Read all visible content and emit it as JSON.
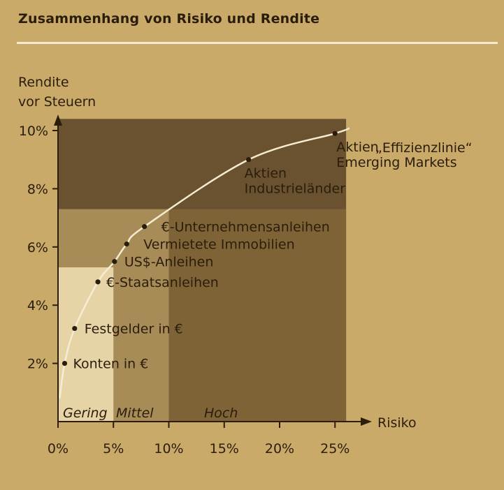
{
  "title": "Zusammenhang von Risiko und Rendite",
  "colors": {
    "background": "#c9aa68",
    "zone_gering": "#e6d4a6",
    "zone_mittel": "#a88c58",
    "zone_hoch": "#7d6335",
    "zone_top": "#6a5230",
    "curve": "#f5ecd2",
    "text": "#2a1d0c"
  },
  "chart_data": {
    "type": "scatter",
    "title": "Zusammenhang von Risiko und Rendite",
    "ylabel_line1": "Rendite",
    "ylabel_line2": "vor Steuern",
    "xlabel": "Risiko",
    "xlim": [
      0,
      27
    ],
    "ylim": [
      0,
      10.5
    ],
    "x_ticks": [
      {
        "value": 0,
        "label": "0%"
      },
      {
        "value": 5,
        "label": "5%"
      },
      {
        "value": 10,
        "label": "10%"
      },
      {
        "value": 15,
        "label": "15%"
      },
      {
        "value": 20,
        "label": "20%"
      },
      {
        "value": 25,
        "label": "25%"
      }
    ],
    "y_ticks": [
      {
        "value": 2,
        "label": "2%"
      },
      {
        "value": 4,
        "label": "4%"
      },
      {
        "value": 6,
        "label": "6%"
      },
      {
        "value": 8,
        "label": "8%"
      },
      {
        "value": 10,
        "label": "10%"
      }
    ],
    "zones": [
      {
        "name": "Gering",
        "x_from": 0,
        "x_to": 5,
        "y_top": 5.3
      },
      {
        "name": "Mittel",
        "x_from": 5,
        "x_to": 10,
        "y_top": 7.3
      },
      {
        "name": "Hoch",
        "x_from": 10,
        "x_to": 26,
        "y_top": 10.4
      }
    ],
    "curve_label": "„Effizienzlinie“",
    "points": [
      {
        "name": "Konten in €",
        "x": 0.6,
        "y": 2.0
      },
      {
        "name": "Festgelder in €",
        "x": 1.5,
        "y": 3.2
      },
      {
        "name": "€-Staatsanleihen",
        "x": 3.6,
        "y": 4.8
      },
      {
        "name": "US$-Anleihen",
        "x": 5.1,
        "y": 5.5
      },
      {
        "name": "Vermietete Immobilien",
        "x": 6.2,
        "y": 6.1
      },
      {
        "name": "€-Unternehmensanleihen",
        "x": 7.8,
        "y": 6.7
      },
      {
        "name": "Aktien Industrieländer",
        "name_line1": "Aktien",
        "name_line2": "Industrieländer",
        "x": 17.2,
        "y": 9.0
      },
      {
        "name": "Aktien Emerging Markets",
        "name_line1": "Aktien",
        "name_line2": "Emerging Markets",
        "x": 25.0,
        "y": 9.9
      }
    ]
  }
}
